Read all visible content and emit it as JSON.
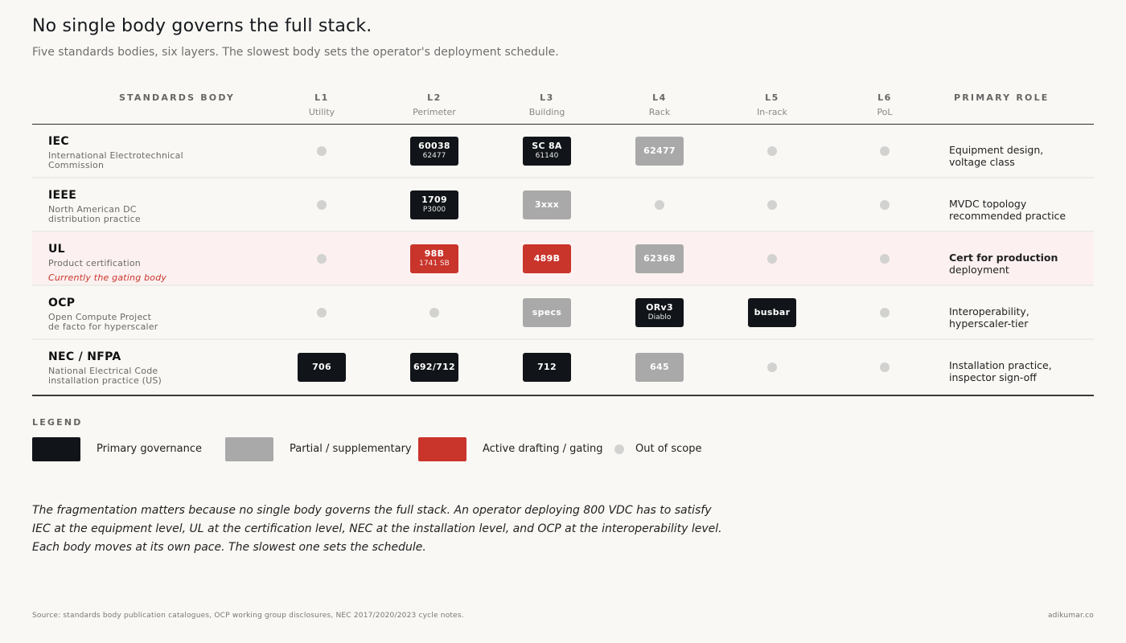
{
  "title": "No single body governs the full stack.",
  "subtitle": "Five standards bodies, six layers. The slowest body sets the operator's deployment schedule.",
  "colors": {
    "primary": "#111418",
    "partial": "#a9a9a9",
    "active": "#c9342b",
    "out_of_scope": "#d2d2d0",
    "gating_row": "#fcf1f0"
  },
  "header": {
    "body_col": "STANDARDS BODY",
    "role_col": "PRIMARY ROLE",
    "layers": [
      {
        "code": "L1",
        "name": "Utility"
      },
      {
        "code": "L2",
        "name": "Perimeter"
      },
      {
        "code": "L3",
        "name": "Building"
      },
      {
        "code": "L4",
        "name": "Rack"
      },
      {
        "code": "L5",
        "name": "In-rack"
      },
      {
        "code": "L6",
        "name": "PoL"
      }
    ]
  },
  "rows": [
    {
      "name": "IEC",
      "desc": "International Electrotechnical\nCommission",
      "note": "",
      "cells": [
        {
          "kind": "none"
        },
        {
          "kind": "primary",
          "main": "60038",
          "sub": "62477"
        },
        {
          "kind": "primary",
          "main": "SC 8A",
          "sub": "61140"
        },
        {
          "kind": "partial",
          "main": "62477",
          "sub": ""
        },
        {
          "kind": "none"
        },
        {
          "kind": "none"
        }
      ],
      "role_strong": "",
      "role_text": "Equipment design,\nvoltage class"
    },
    {
      "name": "IEEE",
      "desc": "North American DC\ndistribution practice",
      "note": "",
      "cells": [
        {
          "kind": "none"
        },
        {
          "kind": "primary",
          "main": "1709",
          "sub": "P3000"
        },
        {
          "kind": "partial",
          "main": "3xxx",
          "sub": ""
        },
        {
          "kind": "none"
        },
        {
          "kind": "none"
        },
        {
          "kind": "none"
        }
      ],
      "role_strong": "",
      "role_text": "MVDC topology\nrecommended practice"
    },
    {
      "name": "UL",
      "desc": "Product certification",
      "note": "Currently the gating body",
      "cells": [
        {
          "kind": "none"
        },
        {
          "kind": "active",
          "main": "98B",
          "sub": "1741 SB"
        },
        {
          "kind": "active",
          "main": "489B",
          "sub": ""
        },
        {
          "kind": "partial",
          "main": "62368",
          "sub": ""
        },
        {
          "kind": "none"
        },
        {
          "kind": "none"
        }
      ],
      "role_strong": "Cert for production",
      "role_text": "deployment"
    },
    {
      "name": "OCP",
      "desc": "Open Compute Project\nde facto for hyperscaler",
      "note": "",
      "cells": [
        {
          "kind": "none"
        },
        {
          "kind": "none"
        },
        {
          "kind": "partial",
          "main": "specs",
          "sub": ""
        },
        {
          "kind": "primary",
          "main": "ORv3",
          "sub": "Diablo"
        },
        {
          "kind": "primary",
          "main": "busbar",
          "sub": ""
        },
        {
          "kind": "none"
        }
      ],
      "role_strong": "",
      "role_text": "Interoperability,\nhyperscaler-tier"
    },
    {
      "name": "NEC / NFPA",
      "desc": "National Electrical Code\ninstallation practice (US)",
      "note": "",
      "cells": [
        {
          "kind": "primary",
          "main": "706",
          "sub": ""
        },
        {
          "kind": "primary",
          "main": "692/712",
          "sub": ""
        },
        {
          "kind": "primary",
          "main": "712",
          "sub": ""
        },
        {
          "kind": "partial",
          "main": "645",
          "sub": ""
        },
        {
          "kind": "none"
        },
        {
          "kind": "none"
        }
      ],
      "role_strong": "",
      "role_text": "Installation practice,\ninspector sign-off"
    }
  ],
  "legend": {
    "title": "LEGEND",
    "primary": "Primary governance",
    "partial": "Partial / supplementary",
    "active": "Active drafting / gating",
    "none": "Out of scope"
  },
  "paragraph": [
    "The fragmentation matters because no single body governs the full stack. An operator deploying 800 VDC has to satisfy",
    "IEC at the equipment level, UL at the certification level, NEC at the installation level, and OCP at the interoperability level.",
    "Each body moves at its own pace. The slowest one sets the schedule."
  ],
  "source": "Source: standards body publication catalogues, OCP working group disclosures, NEC 2017/2020/2023 cycle notes.",
  "credit": "adikumar.co"
}
